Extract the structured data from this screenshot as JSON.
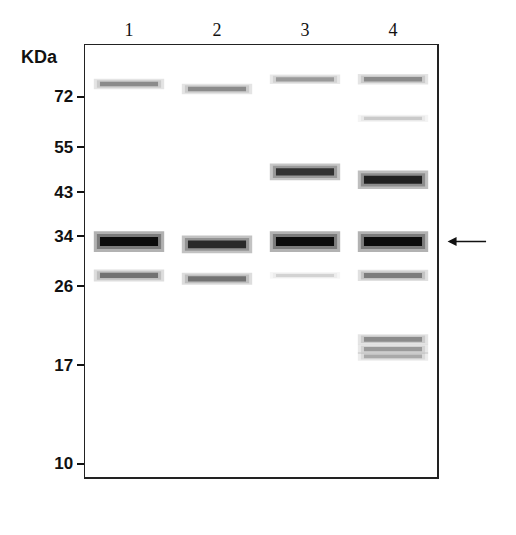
{
  "chart_data": {
    "type": "blot",
    "ylabel": "KDa",
    "log": "y",
    "ylim": [
      9.3,
      95
    ],
    "yticks": [
      10,
      17,
      26,
      34,
      43,
      55,
      72
    ],
    "categories": [
      "1",
      "2",
      "3",
      "4"
    ],
    "bands": [
      {
        "lane": "1",
        "kda": 77,
        "intensity": 0.35
      },
      {
        "lane": "1",
        "kda": 33,
        "intensity": 1.0
      },
      {
        "lane": "1",
        "kda": 27.5,
        "intensity": 0.45
      },
      {
        "lane": "2",
        "kda": 75,
        "intensity": 0.35
      },
      {
        "lane": "2",
        "kda": 32.5,
        "intensity": 0.8
      },
      {
        "lane": "2",
        "kda": 27,
        "intensity": 0.45
      },
      {
        "lane": "3",
        "kda": 79,
        "intensity": 0.3
      },
      {
        "lane": "3",
        "kda": 48,
        "intensity": 0.75
      },
      {
        "lane": "3",
        "kda": 33,
        "intensity": 1.0
      },
      {
        "lane": "3",
        "kda": 27.5,
        "intensity": 0.12
      },
      {
        "lane": "4",
        "kda": 79,
        "intensity": 0.35
      },
      {
        "lane": "4",
        "kda": 64,
        "intensity": 0.15
      },
      {
        "lane": "4",
        "kda": 46,
        "intensity": 0.85
      },
      {
        "lane": "4",
        "kda": 33,
        "intensity": 1.0
      },
      {
        "lane": "4",
        "kda": 27.5,
        "intensity": 0.4
      },
      {
        "lane": "4",
        "kda": 19.5,
        "intensity": 0.35
      },
      {
        "lane": "4",
        "kda": 18.5,
        "intensity": 0.3
      },
      {
        "lane": "4",
        "kda": 17.8,
        "intensity": 0.25
      }
    ],
    "arrow": 33
  }
}
